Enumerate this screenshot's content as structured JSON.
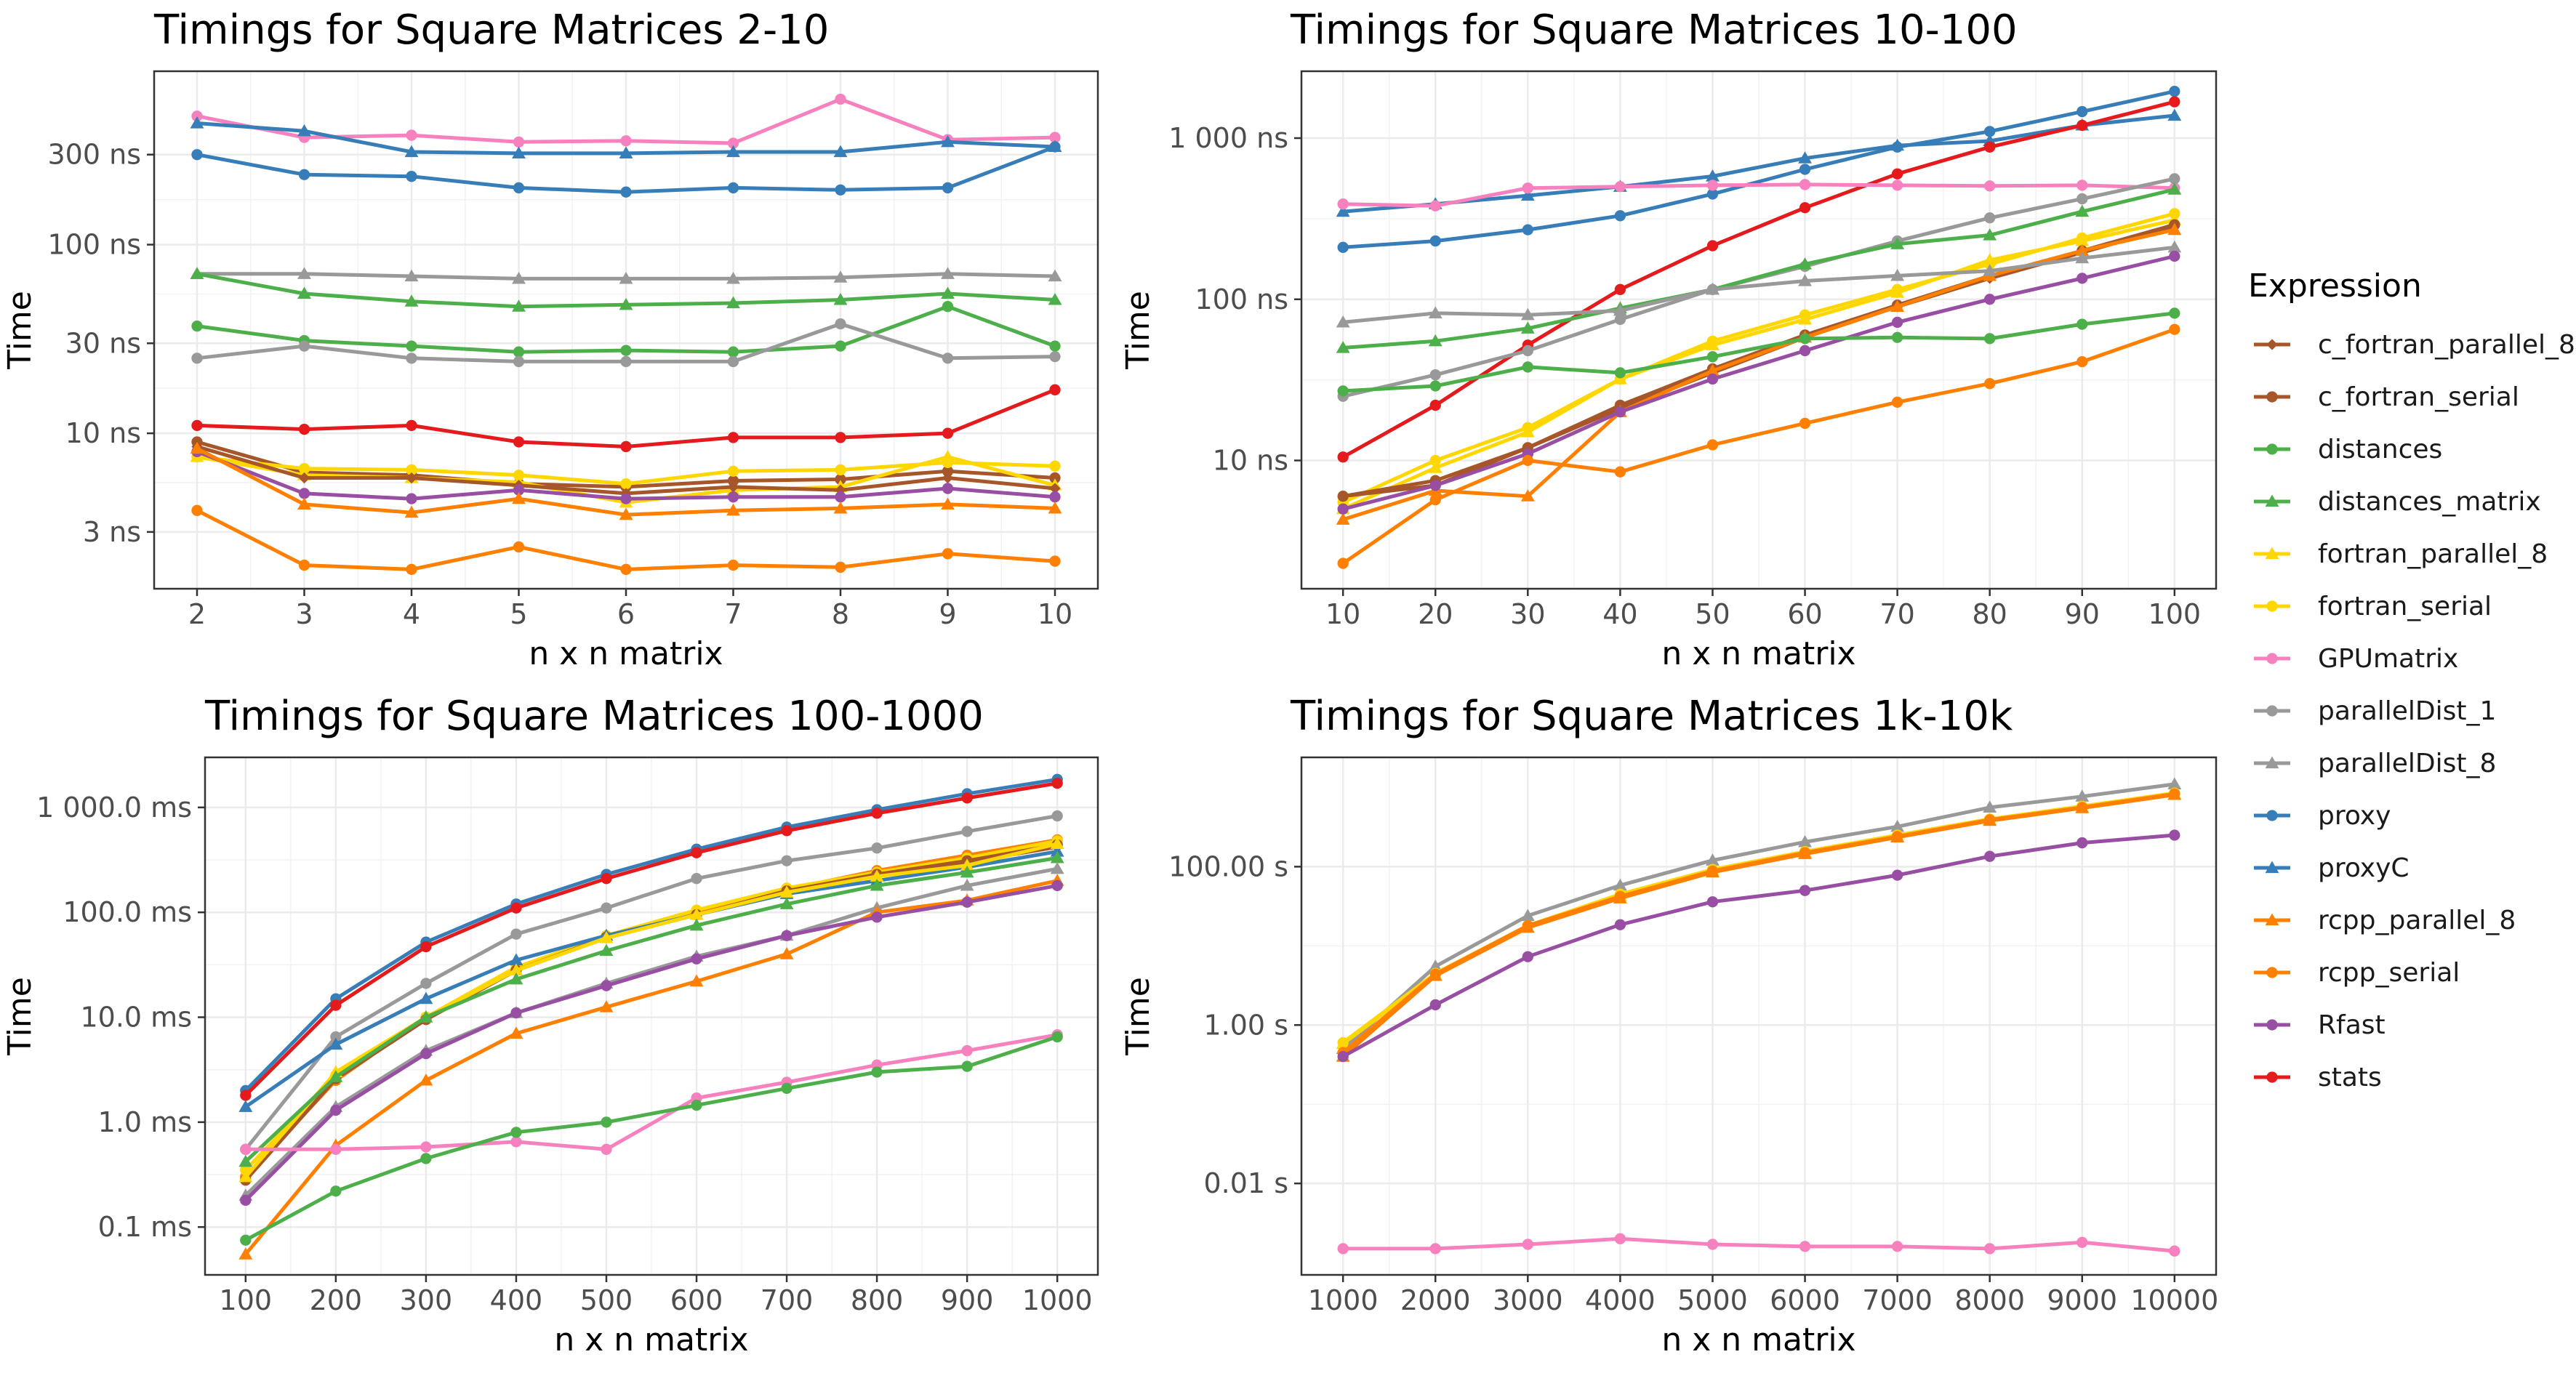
{
  "legend": {
    "title": "Expression",
    "items": [
      {
        "name": "c_fortran_parallel_8",
        "color": "#A65628",
        "shape": "diamond"
      },
      {
        "name": "c_fortran_serial",
        "color": "#A65628",
        "shape": "circle"
      },
      {
        "name": "distances",
        "color": "#4DAF4A",
        "shape": "circle"
      },
      {
        "name": "distances_matrix",
        "color": "#4DAF4A",
        "shape": "triangle"
      },
      {
        "name": "fortran_parallel_8",
        "color": "#FFD700",
        "shape": "triangle"
      },
      {
        "name": "fortran_serial",
        "color": "#FFD700",
        "shape": "circle"
      },
      {
        "name": "GPUmatrix",
        "color": "#F781BF",
        "shape": "circle"
      },
      {
        "name": "parallelDist_1",
        "color": "#999999",
        "shape": "circle"
      },
      {
        "name": "parallelDist_8",
        "color": "#999999",
        "shape": "triangle"
      },
      {
        "name": "proxy",
        "color": "#377EB8",
        "shape": "circle"
      },
      {
        "name": "proxyC",
        "color": "#377EB8",
        "shape": "triangle"
      },
      {
        "name": "rcpp_parallel_8",
        "color": "#FF7F00",
        "shape": "triangle"
      },
      {
        "name": "rcpp_serial",
        "color": "#FF7F00",
        "shape": "circle"
      },
      {
        "name": "Rfast",
        "color": "#984EA3",
        "shape": "circle"
      },
      {
        "name": "stats",
        "color": "#E41A1C",
        "shape": "circle"
      }
    ]
  },
  "chart_data": [
    {
      "type": "line",
      "title": "Timings for Square Matrices 2-10",
      "xlabel": "n x n matrix",
      "ylabel": "Time",
      "x": [
        2,
        3,
        4,
        5,
        6,
        7,
        8,
        9,
        10
      ],
      "xticks": [
        "2",
        "3",
        "4",
        "5",
        "6",
        "7",
        "8",
        "9",
        "10"
      ],
      "y_scale": "log",
      "y_unit": "ns",
      "yticks": [
        3,
        10,
        30,
        100,
        300
      ],
      "ytick_labels": [
        "3 ns",
        "10 ns",
        "30 ns",
        "100 ns",
        "300 ns"
      ],
      "ylim": [
        1.5,
        830
      ],
      "xlim": [
        1.6,
        10.4
      ],
      "grid": true,
      "series": [
        {
          "name": "GPUmatrix",
          "values": [
            480,
            370,
            380,
            350,
            355,
            345,
            590,
            360,
            370
          ]
        },
        {
          "name": "proxyC",
          "values": [
            440,
            400,
            310,
            305,
            305,
            310,
            310,
            350,
            330
          ]
        },
        {
          "name": "proxy",
          "values": [
            300,
            235,
            230,
            200,
            190,
            200,
            195,
            200,
            330
          ]
        },
        {
          "name": "parallelDist_8",
          "values": [
            70,
            70,
            68,
            66,
            66,
            66,
            67,
            70,
            68
          ]
        },
        {
          "name": "distances_matrix",
          "values": [
            70,
            55,
            50,
            47,
            48,
            49,
            51,
            55,
            51
          ]
        },
        {
          "name": "distances",
          "values": [
            37,
            31,
            29,
            27,
            27.5,
            27,
            29,
            47,
            29
          ]
        },
        {
          "name": "parallelDist_1",
          "values": [
            25,
            29,
            25,
            24,
            24,
            24,
            38,
            25,
            25.5
          ]
        },
        {
          "name": "stats",
          "values": [
            11,
            10.5,
            11,
            9,
            8.5,
            9.5,
            9.5,
            10,
            17
          ]
        },
        {
          "name": "c_fortran_serial",
          "values": [
            9,
            6.2,
            6,
            5.4,
            5.2,
            5.6,
            5.7,
            6.3,
            5.8
          ]
        },
        {
          "name": "fortran_serial",
          "values": [
            7.5,
            6.5,
            6.4,
            6,
            5.4,
            6.3,
            6.4,
            7,
            6.7
          ]
        },
        {
          "name": "fortran_parallel_8",
          "values": [
            7.5,
            6,
            5.8,
            5.5,
            4.3,
            5,
            5.2,
            7.5,
            5.3
          ]
        },
        {
          "name": "c_fortran_parallel_8",
          "values": [
            8.5,
            5.8,
            5.8,
            5.3,
            4.8,
            5.2,
            5,
            5.8,
            5.1
          ]
        },
        {
          "name": "Rfast",
          "values": [
            8,
            4.8,
            4.5,
            5,
            4.5,
            4.6,
            4.6,
            5.1,
            4.6
          ]
        },
        {
          "name": "rcpp_parallel_8",
          "values": [
            8.3,
            4.2,
            3.8,
            4.5,
            3.7,
            3.9,
            4,
            4.2,
            4
          ]
        },
        {
          "name": "rcpp_serial",
          "values": [
            3.9,
            2.0,
            1.9,
            2.5,
            1.9,
            2.0,
            1.95,
            2.3,
            2.1
          ]
        }
      ]
    },
    {
      "type": "line",
      "title": "Timings for Square Matrices 10-100",
      "xlabel": "n x n matrix",
      "ylabel": "Time",
      "x": [
        10,
        20,
        30,
        40,
        50,
        60,
        70,
        80,
        90,
        100
      ],
      "xticks": [
        "10",
        "20",
        "30",
        "40",
        "50",
        "60",
        "70",
        "80",
        "90",
        "100"
      ],
      "y_scale": "log",
      "y_unit": "ns",
      "yticks": [
        10,
        100,
        1000
      ],
      "ytick_labels": [
        "10 ns",
        "100 ns",
        "1 000 ns"
      ],
      "ylim": [
        1.6,
        2600
      ],
      "xlim": [
        5.5,
        104.5
      ],
      "grid": true,
      "series": [
        {
          "name": "proxy",
          "values": [
            210,
            230,
            270,
            330,
            450,
            640,
            880,
            1100,
            1460,
            1950
          ]
        },
        {
          "name": "proxyC",
          "values": [
            350,
            390,
            440,
            500,
            580,
            750,
            900,
            960,
            1200,
            1380
          ]
        },
        {
          "name": "stats",
          "values": [
            10.5,
            22,
            52,
            115,
            215,
            370,
            600,
            880,
            1200,
            1680
          ]
        },
        {
          "name": "GPUmatrix",
          "values": [
            390,
            380,
            490,
            500,
            510,
            515,
            510,
            505,
            510,
            490
          ]
        },
        {
          "name": "parallelDist_1",
          "values": [
            25,
            34,
            48,
            75,
            115,
            160,
            230,
            320,
            420,
            560
          ]
        },
        {
          "name": "distances_matrix",
          "values": [
            50,
            55,
            66,
            88,
            115,
            165,
            220,
            250,
            350,
            480
          ]
        },
        {
          "name": "fortran_serial",
          "values": [
            5.5,
            10,
            16,
            32,
            55,
            80,
            115,
            165,
            240,
            340
          ]
        },
        {
          "name": "fortran_parallel_8",
          "values": [
            5,
            9,
            15,
            32,
            52,
            75,
            110,
            175,
            230,
            310
          ]
        },
        {
          "name": "c_fortran_serial",
          "values": [
            6,
            7.5,
            12,
            22,
            37,
            60,
            92,
            140,
            200,
            290
          ]
        },
        {
          "name": "c_fortran_parallel_8",
          "values": [
            6,
            7,
            12,
            21,
            35,
            58,
            90,
            135,
            195,
            285
          ]
        },
        {
          "name": "rcpp_parallel_8",
          "values": [
            4.3,
            6.5,
            6,
            20,
            36,
            58,
            90,
            140,
            200,
            270
          ]
        },
        {
          "name": "parallelDist_8",
          "values": [
            72,
            82,
            80,
            85,
            115,
            130,
            140,
            150,
            180,
            210
          ]
        },
        {
          "name": "Rfast",
          "values": [
            5,
            7,
            11,
            20,
            32,
            48,
            72,
            100,
            135,
            185
          ]
        },
        {
          "name": "distances",
          "values": [
            27,
            29,
            38,
            35,
            44,
            57,
            58,
            57,
            70,
            82
          ]
        },
        {
          "name": "rcpp_serial",
          "values": [
            2.3,
            5.7,
            10,
            8.5,
            12.5,
            17,
            23,
            30,
            41,
            65
          ]
        }
      ]
    },
    {
      "type": "line",
      "title": "Timings for Square Matrices 100-1000",
      "xlabel": "n x n matrix",
      "ylabel": "Time",
      "x": [
        100,
        200,
        300,
        400,
        500,
        600,
        700,
        800,
        900,
        1000
      ],
      "xticks": [
        "100",
        "200",
        "300",
        "400",
        "500",
        "600",
        "700",
        "800",
        "900",
        "1000"
      ],
      "y_scale": "log",
      "y_unit": "ms",
      "yticks": [
        0.1,
        1,
        10,
        100,
        1000
      ],
      "ytick_labels": [
        "0.1 ms",
        "1.0 ms",
        "10.0 ms",
        "100.0 ms",
        "1 000.0 ms"
      ],
      "ylim": [
        0.035,
        3000
      ],
      "xlim": [
        55,
        1045
      ],
      "grid": true,
      "series": [
        {
          "name": "proxy",
          "values": [
            2.0,
            15,
            52,
            120,
            230,
            400,
            650,
            950,
            1350,
            1850
          ]
        },
        {
          "name": "stats",
          "values": [
            1.8,
            13,
            47,
            110,
            210,
            370,
            600,
            880,
            1230,
            1700
          ]
        },
        {
          "name": "parallelDist_1",
          "values": [
            0.55,
            6.5,
            21,
            62,
            110,
            210,
            310,
            410,
            590,
            830
          ]
        },
        {
          "name": "rcpp_serial",
          "values": [
            0.3,
            2.5,
            10,
            28,
            58,
            100,
            165,
            250,
            350,
            490
          ]
        },
        {
          "name": "fortran_serial",
          "values": [
            0.35,
            2.8,
            10,
            30,
            60,
            105,
            170,
            240,
            330,
            480
          ]
        },
        {
          "name": "c_fortran_serial",
          "values": [
            0.28,
            2.6,
            9.5,
            28,
            58,
            95,
            160,
            230,
            310,
            440
          ]
        },
        {
          "name": "c_fortran_parallel_8",
          "values": [
            0.28,
            2.6,
            9.5,
            28,
            57,
            95,
            158,
            225,
            300,
            420
          ]
        },
        {
          "name": "proxyC",
          "values": [
            1.4,
            5.5,
            15,
            35,
            60,
            95,
            150,
            200,
            270,
            380
          ]
        },
        {
          "name": "fortran_parallel_8",
          "values": [
            0.3,
            3,
            10,
            28,
            57,
            95,
            155,
            220,
            280,
            450
          ]
        },
        {
          "name": "distances_matrix",
          "values": [
            0.42,
            2.7,
            10,
            23,
            43,
            75,
            120,
            180,
            240,
            330
          ]
        },
        {
          "name": "parallelDist_8",
          "values": [
            0.2,
            1.4,
            4.8,
            11,
            21,
            38,
            60,
            110,
            180,
            260
          ]
        },
        {
          "name": "rcpp_parallel_8",
          "values": [
            0.055,
            0.6,
            2.5,
            7,
            12.5,
            22,
            40,
            100,
            130,
            200
          ]
        },
        {
          "name": "Rfast",
          "values": [
            0.18,
            1.3,
            4.5,
            11,
            20,
            36,
            60,
            90,
            125,
            180
          ]
        },
        {
          "name": "GPUmatrix",
          "values": [
            0.55,
            0.55,
            0.58,
            0.65,
            0.55,
            1.7,
            2.4,
            3.5,
            4.8,
            6.8
          ]
        },
        {
          "name": "distances",
          "values": [
            0.075,
            0.22,
            0.45,
            0.8,
            1.0,
            1.45,
            2.1,
            3.0,
            3.4,
            6.5
          ]
        }
      ]
    },
    {
      "type": "line",
      "title": "Timings for Square Matrices 1k-10k",
      "xlabel": "n x n matrix",
      "ylabel": "Time",
      "x": [
        1000,
        2000,
        3000,
        4000,
        5000,
        6000,
        7000,
        8000,
        9000,
        10000
      ],
      "xticks": [
        "1000",
        "2000",
        "3000",
        "4000",
        "5000",
        "6000",
        "7000",
        "8000",
        "9000",
        "10000"
      ],
      "y_scale": "log",
      "y_unit": "s",
      "yticks": [
        0.01,
        1,
        100
      ],
      "ytick_labels": [
        "0.01 s",
        "1.00 s",
        "100.00 s"
      ],
      "ylim": [
        0.0007,
        2400
      ],
      "xlim": [
        550,
        10450
      ],
      "grid": true,
      "series": [
        {
          "name": "parallelDist_8",
          "values": [
            0.5,
            5.5,
            24,
            58,
            120,
            205,
            320,
            560,
            770,
            1100
          ]
        },
        {
          "name": "fortran_serial",
          "values": [
            0.6,
            4.5,
            18,
            45,
            92,
            155,
            250,
            400,
            580,
            850
          ]
        },
        {
          "name": "fortran_parallel_8",
          "values": [
            0.58,
            4.3,
            17,
            43,
            88,
            150,
            240,
            390,
            560,
            820
          ]
        },
        {
          "name": "rcpp_serial",
          "values": [
            0.45,
            4.4,
            18,
            42,
            88,
            150,
            240,
            390,
            560,
            830
          ]
        },
        {
          "name": "rcpp_parallel_8",
          "values": [
            0.4,
            4.2,
            17,
            40,
            85,
            145,
            235,
            380,
            550,
            810
          ]
        },
        {
          "name": "Rfast",
          "values": [
            0.4,
            1.8,
            7.3,
            18.5,
            36,
            50,
            78,
            135,
            200,
            250
          ]
        },
        {
          "name": "GPUmatrix",
          "values": [
            0.0015,
            0.0015,
            0.0017,
            0.002,
            0.0017,
            0.0016,
            0.0016,
            0.0015,
            0.0018,
            0.0014
          ]
        }
      ]
    }
  ]
}
